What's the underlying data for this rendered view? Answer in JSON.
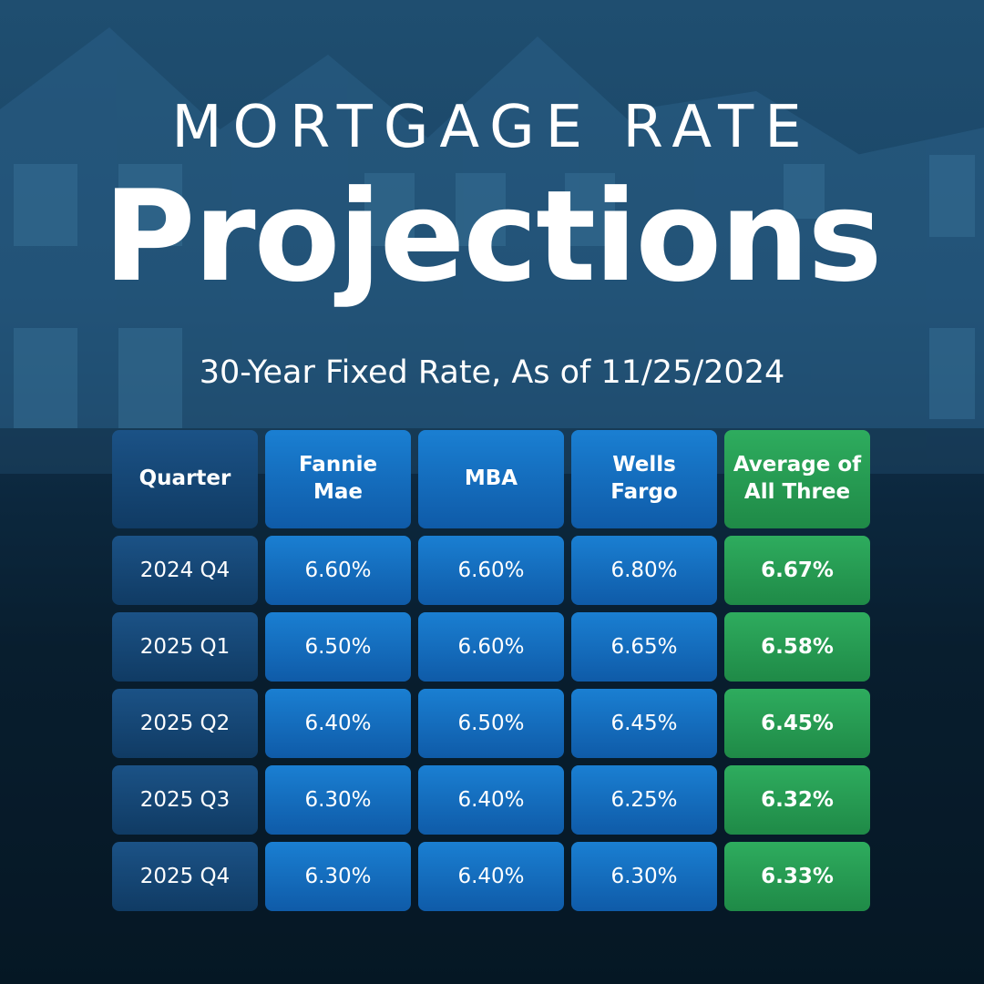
{
  "header": {
    "kicker": "MORTGAGE RATE",
    "title": "Projections",
    "subtitle": "30-Year Fixed Rate, As of 11/25/2024"
  },
  "colors": {
    "quarter_cell": "#103b64",
    "source_cell": "#0f5ba8",
    "average_cell": "#1f8a47",
    "background": "#0a2234"
  },
  "chart_data": {
    "type": "table",
    "title": "Mortgage Rate Projections",
    "subtitle": "30-Year Fixed Rate, As of 11/25/2024",
    "columns": [
      "Quarter",
      "Fannie Mae",
      "MBA",
      "Wells Fargo",
      "Average of All Three"
    ],
    "rows": [
      [
        "2024 Q4",
        "6.60%",
        "6.60%",
        "6.80%",
        "6.67%"
      ],
      [
        "2025 Q1",
        "6.50%",
        "6.60%",
        "6.65%",
        "6.58%"
      ],
      [
        "2025 Q2",
        "6.40%",
        "6.50%",
        "6.45%",
        "6.45%"
      ],
      [
        "2025 Q3",
        "6.30%",
        "6.40%",
        "6.25%",
        "6.32%"
      ],
      [
        "2025 Q4",
        "6.30%",
        "6.40%",
        "6.30%",
        "6.33%"
      ]
    ]
  }
}
